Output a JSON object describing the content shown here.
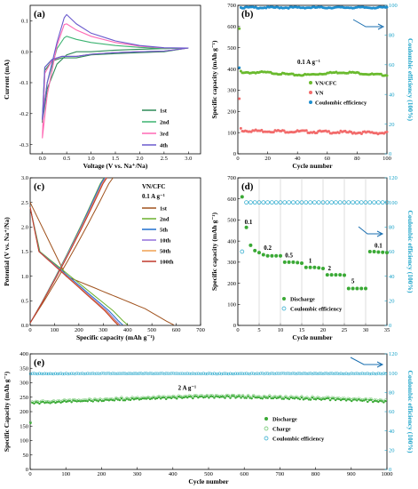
{
  "chart_data": [
    {
      "panel": "(a)",
      "type": "line",
      "xlabel": "Voltage (V vs. Na⁺/Na)",
      "ylabel": "Current (mA)",
      "xlim": [
        -0.25,
        3.25
      ],
      "ylim": [
        -0.33,
        0.15
      ],
      "xticks": [
        "0.0",
        "0.5",
        "1.0",
        "1.5",
        "2.0",
        "2.5",
        "3.0"
      ],
      "yticks": [
        "-0.3",
        "-0.2",
        "-0.1",
        "0.0",
        "0.1"
      ],
      "legend": [
        "1st",
        "2nd",
        "3rd",
        "4th"
      ],
      "series": [
        {
          "name": "1st",
          "color": "#2e8b57",
          "x": [
            0.0,
            0.1,
            0.3,
            0.5,
            0.7,
            1.0,
            1.5,
            2.0,
            2.5,
            3.0,
            2.5,
            2.0,
            1.5,
            1.0,
            0.7,
            0.4,
            0.2,
            0.05,
            0.0
          ],
          "y": [
            -0.23,
            -0.12,
            -0.04,
            -0.01,
            0.0,
            0.0,
            0.005,
            0.008,
            0.01,
            0.012,
            0.0,
            -0.003,
            -0.006,
            -0.01,
            -0.02,
            -0.02,
            -0.03,
            -0.06,
            -0.23
          ]
        },
        {
          "name": "2nd",
          "color": "#3cb371",
          "x": [
            0.0,
            0.1,
            0.3,
            0.45,
            0.5,
            0.7,
            1.0,
            1.5,
            2.0,
            2.5,
            3.0,
            2.5,
            2.0,
            1.5,
            1.0,
            0.7,
            0.4,
            0.2,
            0.05,
            0.0
          ],
          "y": [
            -0.22,
            -0.1,
            0.01,
            0.045,
            0.05,
            0.04,
            0.03,
            0.02,
            0.014,
            0.01,
            0.012,
            0.002,
            0.0,
            -0.003,
            -0.008,
            -0.015,
            -0.015,
            -0.025,
            -0.05,
            -0.22
          ]
        },
        {
          "name": "3rd",
          "color": "#ff69b4",
          "x": [
            0.0,
            0.1,
            0.3,
            0.45,
            0.5,
            0.7,
            1.0,
            1.5,
            2.0,
            2.5,
            3.0,
            2.5,
            2.0,
            1.5,
            1.0,
            0.7,
            0.4,
            0.2,
            0.05,
            0.0
          ],
          "y": [
            -0.28,
            -0.14,
            0.02,
            0.088,
            0.09,
            0.07,
            0.05,
            0.03,
            0.018,
            0.012,
            0.012,
            0.002,
            0.0,
            -0.003,
            -0.008,
            -0.015,
            -0.015,
            -0.028,
            -0.07,
            -0.28
          ]
        },
        {
          "name": "4th",
          "color": "#6a5acd",
          "x": [
            0.0,
            0.1,
            0.3,
            0.45,
            0.5,
            0.7,
            1.0,
            1.5,
            2.0,
            2.5,
            3.0,
            2.5,
            2.0,
            1.5,
            1.0,
            0.7,
            0.4,
            0.2,
            0.05,
            0.0
          ],
          "y": [
            -0.22,
            -0.1,
            0.03,
            0.11,
            0.12,
            0.09,
            0.06,
            0.035,
            0.02,
            0.013,
            0.012,
            0.002,
            0.0,
            -0.003,
            -0.008,
            -0.015,
            -0.015,
            -0.025,
            -0.05,
            -0.22
          ]
        }
      ]
    },
    {
      "panel": "(b)",
      "type": "scatter",
      "xlabel": "Cycle number",
      "ylabel": "Specific capacity (mAh g⁻¹)",
      "y2label": "Coulombic efficiency (100%)",
      "xlim": [
        0,
        100
      ],
      "ylim": [
        0,
        700
      ],
      "y2lim": [
        0,
        100
      ],
      "xticks": [
        "0",
        "20",
        "40",
        "60",
        "80",
        "100"
      ],
      "yticks": [
        "0",
        "100",
        "200",
        "300",
        "400",
        "500",
        "600",
        "700"
      ],
      "y2ticks": [
        "0",
        "20",
        "40",
        "60",
        "80",
        "100"
      ],
      "annotation": "0.1 A g⁻¹",
      "legend": [
        "VN/CFC",
        "VN",
        "Coulombic efficiency"
      ],
      "series": [
        {
          "name": "VN/CFC",
          "color": "#6aba2e",
          "values_summary": "first cycle 590, then ~375-385 stable to cycle 100"
        },
        {
          "name": "VN",
          "color": "#f26b6b",
          "values_summary": "first cycle 260, then ~110 decaying to ~95"
        },
        {
          "name": "Coulombic efficiency",
          "color": "#1f8fcf",
          "values_summary": "first cycle ~58%, then ~98-99%"
        }
      ]
    },
    {
      "panel": "(c)",
      "type": "line",
      "xlabel": "Specific capacity (mAh g⁻¹)",
      "ylabel": "Potential (V vs. Na⁺/Na)",
      "xlim": [
        0,
        700
      ],
      "ylim": [
        0,
        3.0
      ],
      "xticks": [
        "0",
        "100",
        "200",
        "300",
        "400",
        "500",
        "600",
        "700"
      ],
      "yticks": [
        "0.0",
        "0.5",
        "1.0",
        "1.5",
        "2.0",
        "2.5",
        "3.0"
      ],
      "annotation": [
        "VN/CFC",
        "0.1 A g⁻¹"
      ],
      "legend": [
        "1st",
        "2nd",
        "5th",
        "10th",
        "50th",
        "100th"
      ]
    },
    {
      "panel": "(d)",
      "type": "scatter",
      "xlabel": "Cycle number",
      "ylabel": "Specific capacity (mAh g⁻¹)",
      "y2label": "Coulombic efficiency (100%)",
      "xlim": [
        0,
        35
      ],
      "ylim": [
        0,
        700
      ],
      "y2lim": [
        0,
        120
      ],
      "xticks": [
        "0",
        "5",
        "10",
        "15",
        "20",
        "25",
        "30",
        "35"
      ],
      "yticks": [
        "0",
        "100",
        "200",
        "300",
        "400",
        "500",
        "600",
        "700"
      ],
      "y2ticks": [
        "0",
        "20",
        "40",
        "60",
        "80",
        "100",
        "120"
      ],
      "rate_labels": [
        "0.1",
        "0.2",
        "0.5",
        "1",
        "2",
        "5",
        "0.1"
      ],
      "legend": [
        "Discharge",
        "Coulombic efficiency"
      ],
      "discharge": [
        610,
        465,
        380,
        355,
        345,
        335,
        330,
        330,
        330,
        330,
        300,
        300,
        300,
        298,
        295,
        275,
        275,
        275,
        273,
        270,
        240,
        240,
        240,
        240,
        238,
        175,
        175,
        175,
        175,
        175,
        350,
        350,
        348,
        347,
        345
      ]
    },
    {
      "panel": "(e)",
      "type": "scatter",
      "xlabel": "Cycle number",
      "ylabel": "Specific Capacity (mAh g⁻¹)",
      "y2label": "Coulombic efficiency (100%)",
      "xlim": [
        0,
        1000
      ],
      "ylim": [
        0,
        400
      ],
      "y2lim": [
        0,
        120
      ],
      "xticks": [
        "0",
        "100",
        "200",
        "300",
        "400",
        "500",
        "600",
        "700",
        "800",
        "900",
        "1000"
      ],
      "yticks": [
        "0",
        "50",
        "100",
        "150",
        "200",
        "250",
        "300",
        "350",
        "400"
      ],
      "y2ticks": [
        "0",
        "20",
        "40",
        "60",
        "80",
        "100",
        "120"
      ],
      "annotation": "2 A g⁻¹",
      "legend": [
        "Discharge",
        "Charge",
        "Coulombic efficiency"
      ],
      "series_summary": {
        "Discharge": "~225 rising to ~250 at 550 then ~235 at 1000",
        "Charge": "slightly above discharge",
        "Coulombic efficiency": "~99-100%"
      }
    }
  ],
  "colors": {
    "green": "#3aa935",
    "green2": "#6aba2e",
    "red": "#f26b6b",
    "blue": "#1f8fcf",
    "cyan": "#1aa3c9"
  }
}
